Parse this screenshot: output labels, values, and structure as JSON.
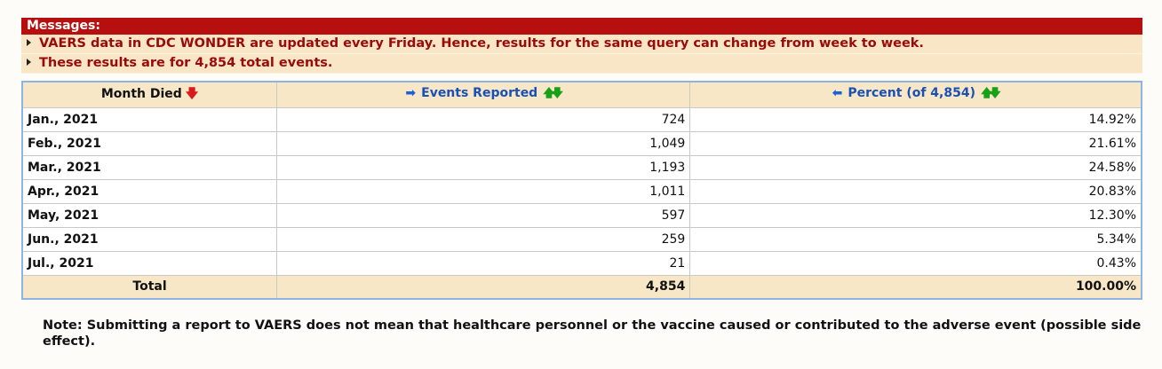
{
  "messages": {
    "header": "Messages:",
    "lines": [
      "VAERS data in CDC WONDER are updated every Friday. Hence, results for the same query can change from week to week.",
      "These results are for 4,854 total events."
    ]
  },
  "table": {
    "headers": {
      "month": "Month Died",
      "events": "Events Reported",
      "percent": "Percent (of 4,854)"
    },
    "rows": [
      {
        "month": "Jan., 2021",
        "events": "724",
        "percent": "14.92%"
      },
      {
        "month": "Feb., 2021",
        "events": "1,049",
        "percent": "21.61%"
      },
      {
        "month": "Mar., 2021",
        "events": "1,193",
        "percent": "24.58%"
      },
      {
        "month": "Apr., 2021",
        "events": "1,011",
        "percent": "20.83%"
      },
      {
        "month": "May, 2021",
        "events": "597",
        "percent": "12.30%"
      },
      {
        "month": "Jun., 2021",
        "events": "259",
        "percent": "5.34%"
      },
      {
        "month": "Jul., 2021",
        "events": "21",
        "percent": "0.43%"
      }
    ],
    "total": {
      "label": "Total",
      "events": "4,854",
      "percent": "100.00%"
    }
  },
  "note": "Note: Submitting a report to VAERS does not mean that healthcare personnel or the vaccine caused or contributed to the adverse event (possible side effect).",
  "icons": {
    "month_sort": "sort-descending-red-arrow-icon",
    "events_move": "move-right-arrow-icon",
    "percent_move": "move-left-arrow-icon",
    "sort_asc": "sort-ascending-green-arrow-icon",
    "sort_desc": "sort-descending-green-arrow-icon"
  },
  "colors": {
    "message_header_bg": "#b70f0f",
    "message_bg": "#f8e6c6",
    "message_text": "#9b0a0a",
    "table_header_bg": "#f8e7c7",
    "link_blue": "#1a4fb5",
    "table_border": "#8eb4e6"
  }
}
